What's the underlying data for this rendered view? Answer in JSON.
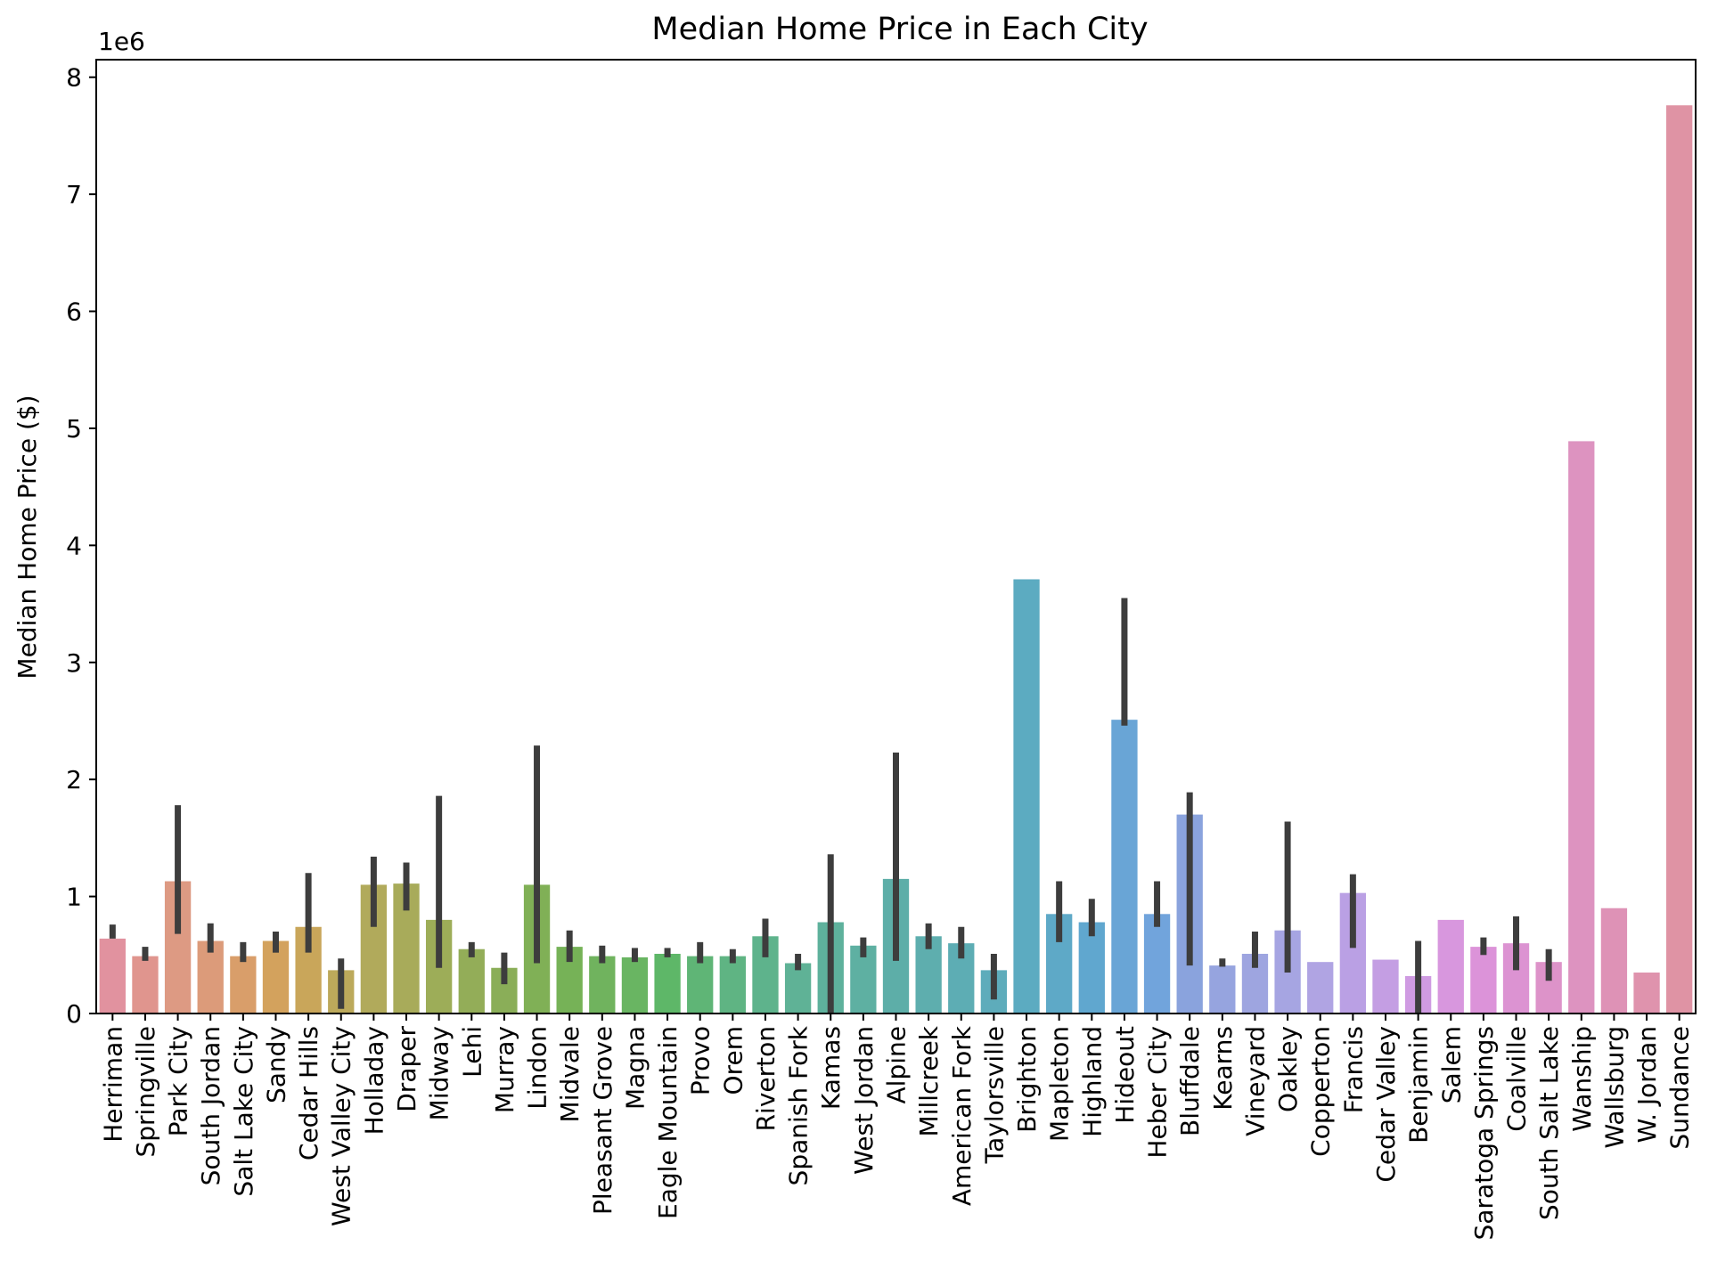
{
  "chart_data": {
    "type": "bar",
    "title": "Median Home Price in Each City",
    "xlabel": "",
    "ylabel": "Median Home Price ($)",
    "y_scale_label": "1e6",
    "ylim": [
      0,
      8150000
    ],
    "yticks": [
      0,
      1,
      2,
      3,
      4,
      5,
      6,
      7,
      8
    ],
    "grid": false,
    "legend": "none",
    "error_bar_color": "#3d3d3d",
    "categories": [
      "Herriman",
      "Springville",
      "Park City",
      "South Jordan",
      "Salt Lake City",
      "Sandy",
      "Cedar Hills",
      "West Valley City",
      "Holladay",
      "Draper",
      "Midway",
      "Lehi",
      "Murray",
      "Lindon",
      "Midvale",
      "Pleasant Grove",
      "Magna",
      "Eagle Mountain",
      "Provo",
      "Orem",
      "Riverton",
      "Spanish Fork",
      "Kamas",
      "West Jordan",
      "Alpine",
      "Millcreek",
      "American Fork",
      "Taylorsville",
      "Brighton",
      "Mapleton",
      "Highland",
      "Hideout",
      "Heber City",
      "Bluffdale",
      "Kearns",
      "Vineyard",
      "Oakley",
      "Copperton",
      "Francis",
      "Cedar Valley",
      "Benjamin",
      "Salem",
      "Saratoga Springs",
      "Coalville",
      "South Salt Lake",
      "Wanship",
      "Wallsburg",
      "W. Jordan",
      "Sundance"
    ],
    "values": [
      640000,
      490000,
      1130000,
      620000,
      490000,
      620000,
      740000,
      370000,
      1100000,
      1110000,
      800000,
      550000,
      390000,
      1100000,
      570000,
      490000,
      480000,
      510000,
      490000,
      490000,
      660000,
      430000,
      780000,
      580000,
      1150000,
      660000,
      600000,
      370000,
      3710000,
      850000,
      780000,
      2510000,
      850000,
      1700000,
      410000,
      510000,
      710000,
      440000,
      1030000,
      460000,
      320000,
      800000,
      570000,
      600000,
      440000,
      4890000,
      900000,
      350000,
      7760000
    ],
    "error_low": [
      640000,
      450000,
      680000,
      520000,
      440000,
      520000,
      520000,
      40000,
      740000,
      880000,
      390000,
      480000,
      250000,
      430000,
      440000,
      430000,
      440000,
      480000,
      430000,
      430000,
      480000,
      370000,
      0,
      480000,
      450000,
      550000,
      470000,
      120000,
      null,
      610000,
      660000,
      2460000,
      740000,
      410000,
      400000,
      390000,
      350000,
      null,
      560000,
      null,
      0,
      null,
      500000,
      370000,
      280000,
      null,
      null,
      null,
      null
    ],
    "error_high": [
      760000,
      570000,
      1780000,
      770000,
      610000,
      700000,
      1200000,
      470000,
      1340000,
      1290000,
      1860000,
      610000,
      520000,
      2290000,
      710000,
      580000,
      560000,
      560000,
      610000,
      550000,
      810000,
      510000,
      1360000,
      650000,
      2230000,
      770000,
      740000,
      510000,
      null,
      1130000,
      980000,
      3550000,
      1130000,
      1890000,
      470000,
      700000,
      1640000,
      null,
      1190000,
      null,
      620000,
      null,
      650000,
      830000,
      550000,
      null,
      null,
      null,
      null
    ],
    "colors": [
      "#e1929f",
      "#e0958e",
      "#dd9a83",
      "#dc9b7a",
      "#d99e6a",
      "#d3a25d",
      "#c9a65a",
      "#bca95b",
      "#b1aa5b",
      "#a8ab5a",
      "#9dad58",
      "#93ad58",
      "#8aae58",
      "#80b056",
      "#76b257",
      "#70b35e",
      "#69b562",
      "#5eb768",
      "#5fb576",
      "#5fb483",
      "#5eb38c",
      "#5fb296",
      "#5eb19c",
      "#5eb0a2",
      "#5daea8",
      "#5eaeae",
      "#5dadb4",
      "#5eacbb",
      "#5cabc1",
      "#5ea9c7",
      "#60a7cf",
      "#69a5d6",
      "#71a4dc",
      "#8aa3dd",
      "#96a4df",
      "#9ea5e0",
      "#a6a5e2",
      "#b0a4e3",
      "#baa0e4",
      "#c49ee3",
      "#cf9be2",
      "#d897de",
      "#dc93d9",
      "#dc93d2",
      "#dd93c9",
      "#dd93c0",
      "#de92b6",
      "#df93ad",
      "#df93a4"
    ]
  }
}
